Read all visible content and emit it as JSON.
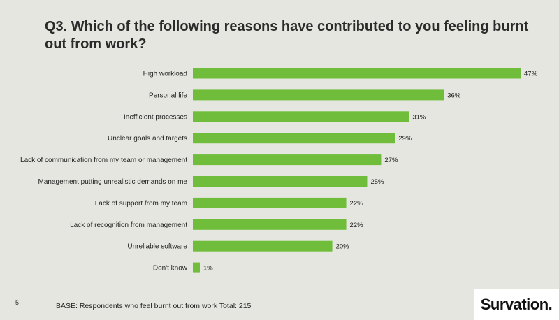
{
  "page_number": "5",
  "title": "Q3. Which of the following reasons have contributed to you feeling burnt out from work?",
  "base_note": "BASE: Respondents who feel burnt out from work Total: 215",
  "brand": "Survation.",
  "colors": {
    "bar": "#6fbd3b",
    "background": "#e4e6df"
  },
  "chart_data": {
    "type": "bar",
    "orientation": "horizontal",
    "categories": [
      "High workload",
      "Personal life",
      "Inefficient processes",
      "Unclear goals and targets",
      "Lack of communication from my team or management",
      "Management putting unrealistic demands on me",
      "Lack of support from my team",
      "Lack of recognition from management",
      "Unreliable software",
      "Don't know"
    ],
    "values": [
      47,
      36,
      31,
      29,
      27,
      25,
      22,
      22,
      20,
      1
    ],
    "value_labels": [
      "47%",
      "36%",
      "31%",
      "29%",
      "27%",
      "25%",
      "22%",
      "22%",
      "20%",
      "1%"
    ],
    "unit": "%",
    "xlim": [
      0,
      47
    ],
    "grid": false,
    "legend": "none"
  }
}
